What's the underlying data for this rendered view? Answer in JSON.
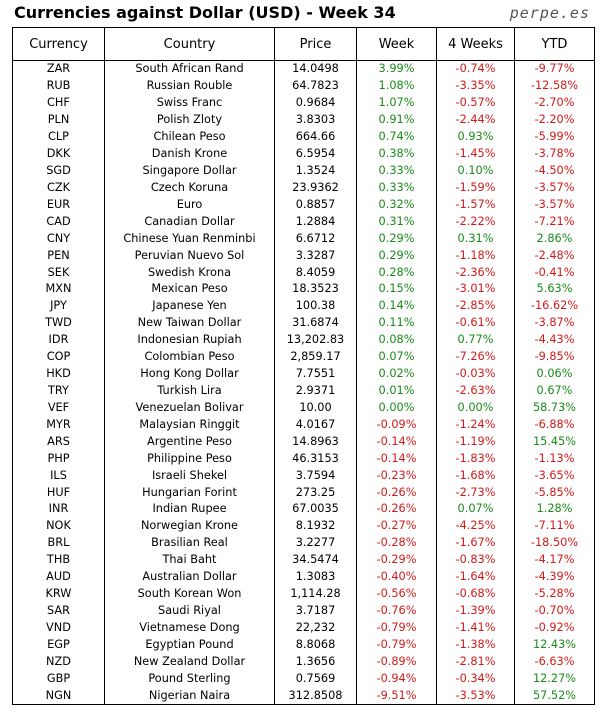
{
  "title": "Currencies against Dollar (USD) - Week 34",
  "brand": "perpe.es",
  "columns": [
    "Currency",
    "Country",
    "Price",
    "Week",
    "4 Weeks",
    "YTD"
  ],
  "rows": [
    [
      "ZAR",
      "South African Rand",
      "14.0498",
      "3.99%",
      "-0.74%",
      "-9.77%"
    ],
    [
      "RUB",
      "Russian Rouble",
      "64.7823",
      "1.08%",
      "-3.35%",
      "-12.58%"
    ],
    [
      "CHF",
      "Swiss Franc",
      "0.9684",
      "1.07%",
      "-0.57%",
      "-2.70%"
    ],
    [
      "PLN",
      "Polish Zloty",
      "3.8303",
      "0.91%",
      "-2.44%",
      "-2.20%"
    ],
    [
      "CLP",
      "Chilean Peso",
      "664.66",
      "0.74%",
      "0.93%",
      "-5.99%"
    ],
    [
      "DKK",
      "Danish Krone",
      "6.5954",
      "0.38%",
      "-1.45%",
      "-3.78%"
    ],
    [
      "SGD",
      "Singapore Dollar",
      "1.3524",
      "0.33%",
      "0.10%",
      "-4.50%"
    ],
    [
      "CZK",
      "Czech Koruna",
      "23.9362",
      "0.33%",
      "-1.59%",
      "-3.57%"
    ],
    [
      "EUR",
      "Euro",
      "0.8857",
      "0.32%",
      "-1.57%",
      "-3.57%"
    ],
    [
      "CAD",
      "Canadian Dollar",
      "1.2884",
      "0.31%",
      "-2.22%",
      "-7.21%"
    ],
    [
      "CNY",
      "Chinese Yuan Renminbi",
      "6.6712",
      "0.29%",
      "0.31%",
      "2.86%"
    ],
    [
      "PEN",
      "Peruvian Nuevo Sol",
      "3.3287",
      "0.29%",
      "-1.18%",
      "-2.48%"
    ],
    [
      "SEK",
      "Swedish Krona",
      "8.4059",
      "0.28%",
      "-2.36%",
      "-0.41%"
    ],
    [
      "MXN",
      "Mexican Peso",
      "18.3523",
      "0.15%",
      "-3.01%",
      "5.63%"
    ],
    [
      "JPY",
      "Japanese Yen",
      "100.38",
      "0.14%",
      "-2.85%",
      "-16.62%"
    ],
    [
      "TWD",
      "New Taiwan Dollar",
      "31.6874",
      "0.11%",
      "-0.61%",
      "-3.87%"
    ],
    [
      "IDR",
      "Indonesian Rupiah",
      "13,202.83",
      "0.08%",
      "0.77%",
      "-4.43%"
    ],
    [
      "COP",
      "Colombian Peso",
      "2,859.17",
      "0.07%",
      "-7.26%",
      "-9.85%"
    ],
    [
      "HKD",
      "Hong Kong Dollar",
      "7.7551",
      "0.02%",
      "-0.03%",
      "0.06%"
    ],
    [
      "TRY",
      "Turkish Lira",
      "2.9371",
      "0.01%",
      "-2.63%",
      "0.67%"
    ],
    [
      "VEF",
      "Venezuelan Bolivar",
      "10.00",
      "0.00%",
      "0.00%",
      "58.73%"
    ],
    [
      "MYR",
      "Malaysian Ringgit",
      "4.0167",
      "-0.09%",
      "-1.24%",
      "-6.88%"
    ],
    [
      "ARS",
      "Argentine Peso",
      "14.8963",
      "-0.14%",
      "-1.19%",
      "15.45%"
    ],
    [
      "PHP",
      "Philippine Peso",
      "46.3153",
      "-0.14%",
      "-1.83%",
      "-1.13%"
    ],
    [
      "ILS",
      "Israeli Shekel",
      "3.7594",
      "-0.23%",
      "-1.68%",
      "-3.65%"
    ],
    [
      "HUF",
      "Hungarian Forint",
      "273.25",
      "-0.26%",
      "-2.73%",
      "-5.85%"
    ],
    [
      "INR",
      "Indian Rupee",
      "67.0035",
      "-0.26%",
      "0.07%",
      "1.28%"
    ],
    [
      "NOK",
      "Norwegian Krone",
      "8.1932",
      "-0.27%",
      "-4.25%",
      "-7.11%"
    ],
    [
      "BRL",
      "Brasilian Real",
      "3.2277",
      "-0.28%",
      "-1.67%",
      "-18.50%"
    ],
    [
      "THB",
      "Thai Baht",
      "34.5474",
      "-0.29%",
      "-0.83%",
      "-4.17%"
    ],
    [
      "AUD",
      "Australian Dollar",
      "1.3083",
      "-0.40%",
      "-1.64%",
      "-4.39%"
    ],
    [
      "KRW",
      "South Korean Won",
      "1,114.28",
      "-0.56%",
      "-0.68%",
      "-5.28%"
    ],
    [
      "SAR",
      "Saudi Riyal",
      "3.7187",
      "-0.76%",
      "-1.39%",
      "-0.70%"
    ],
    [
      "VND",
      "Vietnamese Dong",
      "22,232",
      "-0.79%",
      "-1.41%",
      "-0.92%"
    ],
    [
      "EGP",
      "Egyptian Pound",
      "8.8068",
      "-0.79%",
      "-1.38%",
      "12.43%"
    ],
    [
      "NZD",
      "New Zealand Dollar",
      "1.3656",
      "-0.89%",
      "-2.81%",
      "-6.63%"
    ],
    [
      "GBP",
      "Pound Sterling",
      "0.7569",
      "-0.94%",
      "-0.34%",
      "12.27%"
    ],
    [
      "NGN",
      "Nigerian Naira",
      "312.8508",
      "-9.51%",
      "-3.53%",
      "57.52%"
    ]
  ],
  "colors": {
    "positive": "#1a8a1a",
    "negative": "#d11a1a"
  }
}
